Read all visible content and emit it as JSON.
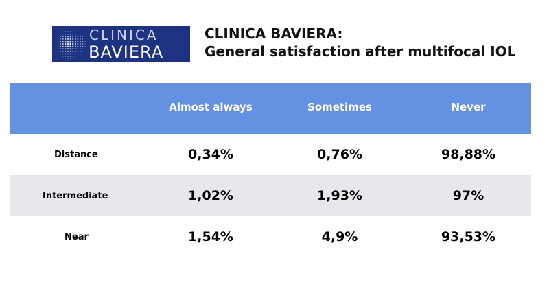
{
  "logo": {
    "line1": "CLINICA",
    "line2": "BAVIERA",
    "icon": "globe-grid-icon",
    "colors": {
      "background": "#1d3280",
      "text": "#ffffff"
    }
  },
  "title": {
    "line1": "CLINICA BAVIERA:",
    "line2": "General satisfaction after multifocal IOL"
  },
  "table": {
    "header_color": "#6591e2",
    "stripe_color": "#e7e8ec",
    "columns": [
      "",
      "Almost always",
      "Sometimes",
      "Never"
    ],
    "rows": [
      {
        "label": "Distance",
        "values": [
          "0,34%",
          "0,76%",
          "98,88%"
        ]
      },
      {
        "label": "Intermediate",
        "values": [
          "1,02%",
          "1,93%",
          "97%"
        ]
      },
      {
        "label": "Near",
        "values": [
          "1,54%",
          "4,9%",
          "93,53%"
        ]
      }
    ]
  }
}
